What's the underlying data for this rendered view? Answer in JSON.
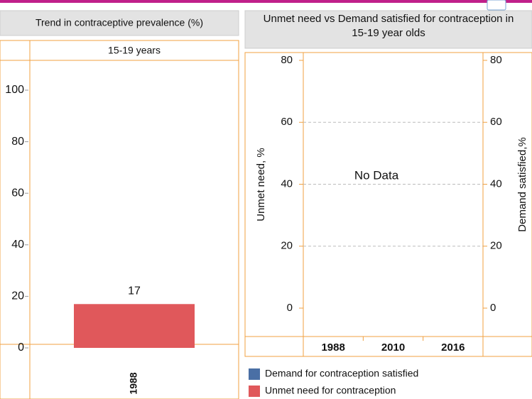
{
  "chart_data": [
    {
      "type": "bar",
      "title": "Trend in contraceptive prevalence (%)",
      "subtitle": "15-19 years",
      "categories": [
        "1988"
      ],
      "values": [
        17
      ],
      "color": "#e0585b",
      "ylim": [
        0,
        100
      ],
      "yticks": [
        0,
        20,
        40,
        60,
        80,
        100
      ]
    },
    {
      "type": "bar",
      "title": "Unmet need vs Demand satisfied for contraception in 15-19 year olds",
      "categories": [
        "1988",
        "2010",
        "2016"
      ],
      "series": [
        {
          "name": "Demand for contraception satisfied",
          "color": "#4a6fa5",
          "values": [
            null,
            null,
            null
          ],
          "axis": "y2"
        },
        {
          "name": "Unmet need for contraception",
          "color": "#e0585b",
          "values": [
            null,
            null,
            null
          ]
        }
      ],
      "ylabel": "Unmet need, %",
      "y2label": "Demand satisfied,%",
      "annotation": "No Data",
      "ylim": [
        0,
        80
      ],
      "yticks": [
        0,
        20,
        40,
        60,
        80
      ],
      "y2lim": [
        0,
        80
      ],
      "y2ticks": [
        0,
        20,
        40,
        60,
        80
      ],
      "grid": true
    }
  ]
}
